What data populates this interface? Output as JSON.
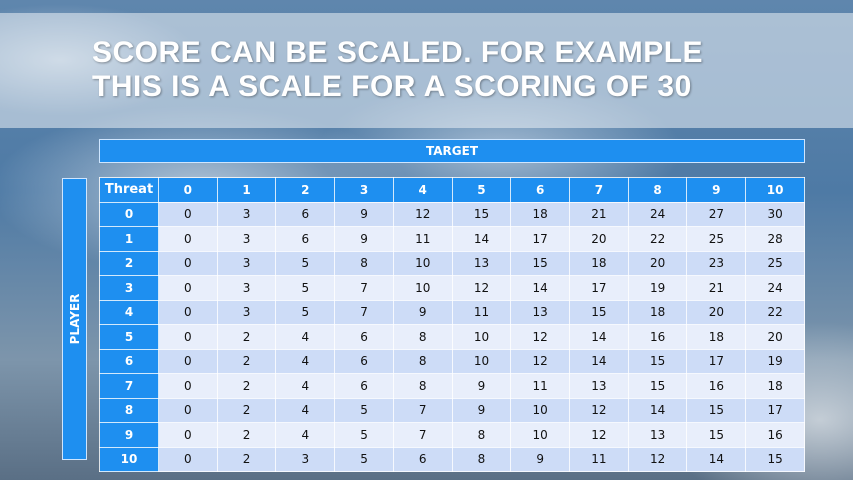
{
  "slide": {
    "title_lines": [
      "SCORE CAN BE SCALED. FOR EXAMPLE",
      "THIS IS A SCALE FOR A SCORING OF 30"
    ],
    "target_label": "TARGET",
    "player_label": "PLAYER",
    "colors": {
      "header": "#1e8ff0",
      "row_odd": "#cddcf7",
      "row_even": "#e8eefb"
    }
  },
  "table": {
    "corner": "Threat",
    "columns": [
      "0",
      "1",
      "2",
      "3",
      "4",
      "5",
      "6",
      "7",
      "8",
      "9",
      "10"
    ],
    "rows": [
      {
        "label": "0",
        "values": [
          "0",
          "3",
          "6",
          "9",
          "12",
          "15",
          "18",
          "21",
          "24",
          "27",
          "30"
        ]
      },
      {
        "label": "1",
        "values": [
          "0",
          "3",
          "6",
          "9",
          "11",
          "14",
          "17",
          "20",
          "22",
          "25",
          "28"
        ]
      },
      {
        "label": "2",
        "values": [
          "0",
          "3",
          "5",
          "8",
          "10",
          "13",
          "15",
          "18",
          "20",
          "23",
          "25"
        ]
      },
      {
        "label": "3",
        "values": [
          "0",
          "3",
          "5",
          "7",
          "10",
          "12",
          "14",
          "17",
          "19",
          "21",
          "24"
        ]
      },
      {
        "label": "4",
        "values": [
          "0",
          "3",
          "5",
          "7",
          "9",
          "11",
          "13",
          "15",
          "18",
          "20",
          "22"
        ]
      },
      {
        "label": "5",
        "values": [
          "0",
          "2",
          "4",
          "6",
          "8",
          "10",
          "12",
          "14",
          "16",
          "18",
          "20"
        ]
      },
      {
        "label": "6",
        "values": [
          "0",
          "2",
          "4",
          "6",
          "8",
          "10",
          "12",
          "14",
          "15",
          "17",
          "19"
        ]
      },
      {
        "label": "7",
        "values": [
          "0",
          "2",
          "4",
          "6",
          "8",
          "9",
          "11",
          "13",
          "15",
          "16",
          "18"
        ]
      },
      {
        "label": "8",
        "values": [
          "0",
          "2",
          "4",
          "5",
          "7",
          "9",
          "10",
          "12",
          "14",
          "15",
          "17"
        ]
      },
      {
        "label": "9",
        "values": [
          "0",
          "2",
          "4",
          "5",
          "7",
          "8",
          "10",
          "12",
          "13",
          "15",
          "16"
        ]
      },
      {
        "label": "10",
        "values": [
          "0",
          "2",
          "3",
          "5",
          "6",
          "8",
          "9",
          "11",
          "12",
          "14",
          "15"
        ]
      }
    ]
  }
}
